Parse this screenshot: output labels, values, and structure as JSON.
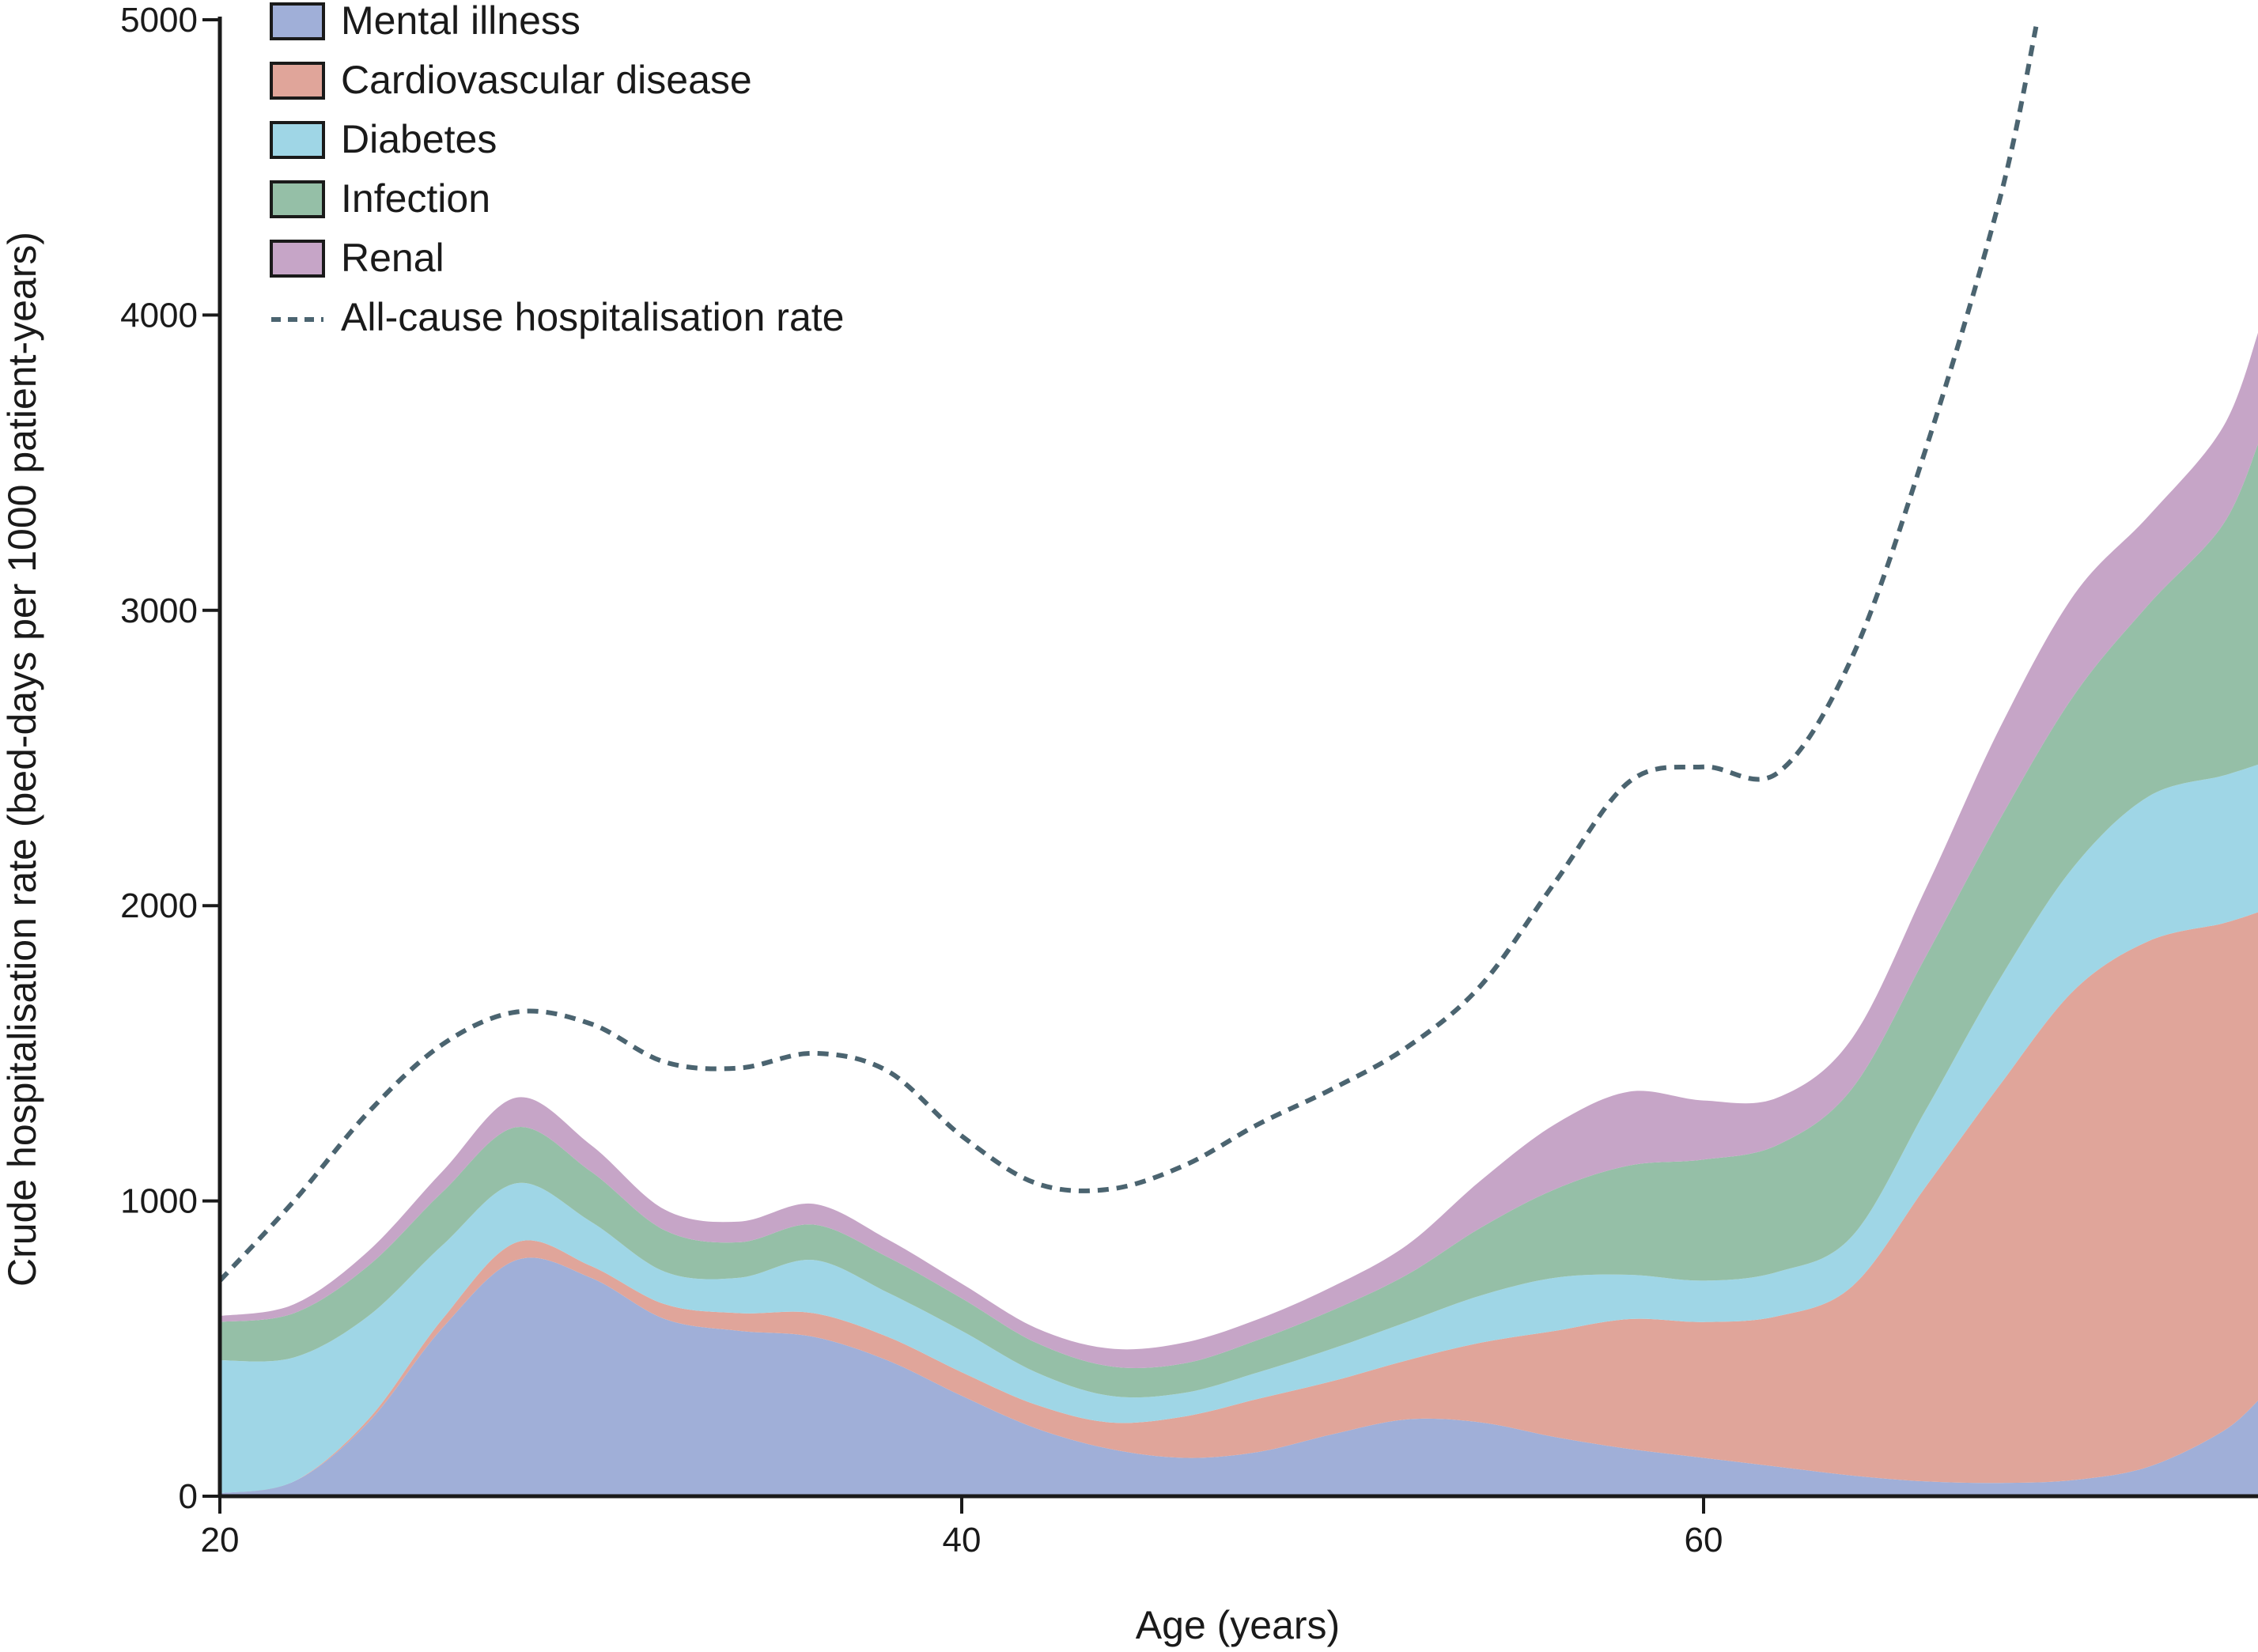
{
  "chart_data": {
    "type": "area",
    "stacked": true,
    "title": "",
    "xlabel": "Age (years)",
    "ylabel": "Crude hospitalisation rate (bed-days per 1000 patient-years)",
    "xlim": [
      20,
      75
    ],
    "ylim": [
      0,
      5000
    ],
    "xticks": [
      20,
      40,
      60
    ],
    "yticks": [
      0,
      1000,
      2000,
      3000,
      4000,
      5000
    ],
    "grid": false,
    "legend_position": "top-left",
    "x": [
      20,
      22,
      24,
      26,
      28,
      30,
      32,
      34,
      36,
      38,
      40,
      42,
      44,
      46,
      48,
      50,
      52,
      54,
      56,
      58,
      60,
      62,
      64,
      66,
      68,
      70,
      72,
      74,
      75
    ],
    "series": [
      {
        "name": "Mental illness",
        "color": "#a0afd8",
        "values": [
          10,
          50,
          250,
          570,
          800,
          740,
          600,
          560,
          540,
          460,
          340,
          230,
          160,
          130,
          150,
          210,
          260,
          250,
          200,
          160,
          130,
          100,
          70,
          50,
          45,
          55,
          100,
          220,
          330
        ]
      },
      {
        "name": "Cardiovascular disease",
        "color": "#e0a59a",
        "values": [
          0,
          0,
          10,
          30,
          60,
          40,
          50,
          60,
          80,
          80,
          80,
          80,
          90,
          140,
          180,
          180,
          200,
          270,
          360,
          440,
          460,
          510,
          640,
          1000,
          1350,
          1660,
          1780,
          1720,
          1650
        ]
      },
      {
        "name": "Diabetes",
        "color": "#9fd6e6",
        "values": [
          450,
          420,
          350,
          250,
          200,
          150,
          110,
          120,
          180,
          150,
          140,
          110,
          90,
          80,
          90,
          110,
          130,
          160,
          180,
          150,
          140,
          150,
          170,
          260,
          360,
          420,
          490,
          500,
          500
        ]
      },
      {
        "name": "Infection",
        "color": "#95bfa7",
        "values": [
          130,
          150,
          170,
          180,
          190,
          170,
          140,
          120,
          120,
          120,
          110,
          100,
          100,
          100,
          110,
          130,
          160,
          230,
          300,
          370,
          410,
          430,
          500,
          520,
          540,
          580,
          650,
          850,
          1100
        ]
      },
      {
        "name": "Renal",
        "color": "#c6a5c7",
        "values": [
          20,
          30,
          50,
          70,
          100,
          90,
          70,
          70,
          70,
          60,
          50,
          50,
          60,
          70,
          70,
          80,
          100,
          160,
          220,
          250,
          200,
          160,
          170,
          230,
          310,
          340,
          300,
          330,
          380
        ]
      }
    ],
    "lines": [
      {
        "name": "All-cause hospitalisation rate",
        "color": "#4b6470",
        "style": "dashed",
        "x": [
          20,
          22,
          24,
          26,
          28,
          30,
          32,
          34,
          36,
          38,
          40,
          42,
          44,
          46,
          48,
          50,
          52,
          54,
          56,
          58,
          60,
          62,
          64,
          66,
          68,
          69
        ],
        "values": [
          730,
          1000,
          1300,
          1530,
          1640,
          1600,
          1470,
          1450,
          1500,
          1440,
          1220,
          1060,
          1040,
          1120,
          1260,
          1380,
          1520,
          1730,
          2080,
          2420,
          2470,
          2450,
          2840,
          3550,
          4400,
          5000
        ]
      }
    ]
  }
}
